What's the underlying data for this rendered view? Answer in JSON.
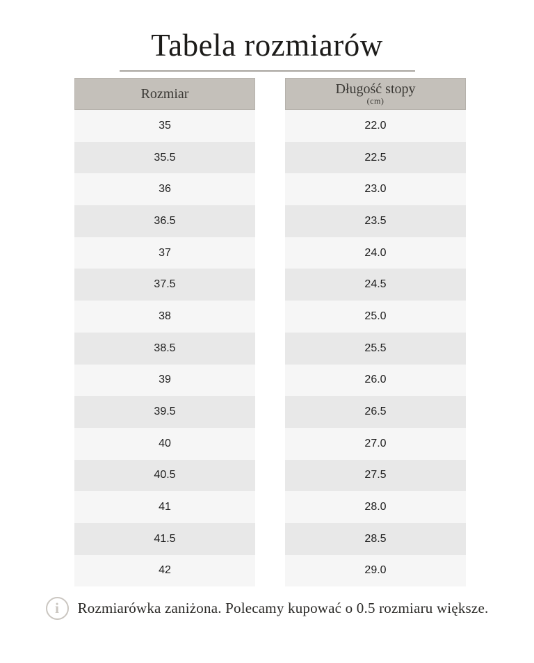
{
  "title": "Tabela rozmiarów",
  "note": {
    "icon": "info-icon",
    "text": "Rozmiarówka zaniżona. Polecamy kupować o 0.5 rozmiaru większe."
  },
  "colors": {
    "title_text": "#1c1b19",
    "underline": "#a8a49e",
    "header_bg": "#c4c0ba",
    "header_text": "#3b3935",
    "row_light": "#f6f6f6",
    "row_dark": "#e8e8e8",
    "body_text": "#1c1c1c",
    "note_icon": "#cac6c0",
    "note_text": "#2b2a27"
  },
  "chart_data": {
    "type": "table",
    "title": "Tabela rozmiarów",
    "columns": [
      {
        "label": "Rozmiar",
        "sublabel": ""
      },
      {
        "label": "Długość stopy",
        "sublabel": "(cm)"
      }
    ],
    "rows": [
      [
        "35",
        "22.0"
      ],
      [
        "35.5",
        "22.5"
      ],
      [
        "36",
        "23.0"
      ],
      [
        "36.5",
        "23.5"
      ],
      [
        "37",
        "24.0"
      ],
      [
        "37.5",
        "24.5"
      ],
      [
        "38",
        "25.0"
      ],
      [
        "38.5",
        "25.5"
      ],
      [
        "39",
        "26.0"
      ],
      [
        "39.5",
        "26.5"
      ],
      [
        "40",
        "27.0"
      ],
      [
        "40.5",
        "27.5"
      ],
      [
        "41",
        "28.0"
      ],
      [
        "41.5",
        "28.5"
      ],
      [
        "42",
        "29.0"
      ]
    ],
    "footnote": "Rozmiarówka zaniżona. Polecamy kupować o 0.5 rozmiaru większe.",
    "layout": {
      "grid": false,
      "legend": "none",
      "style": "two-column size chart, alternating row shading"
    }
  }
}
